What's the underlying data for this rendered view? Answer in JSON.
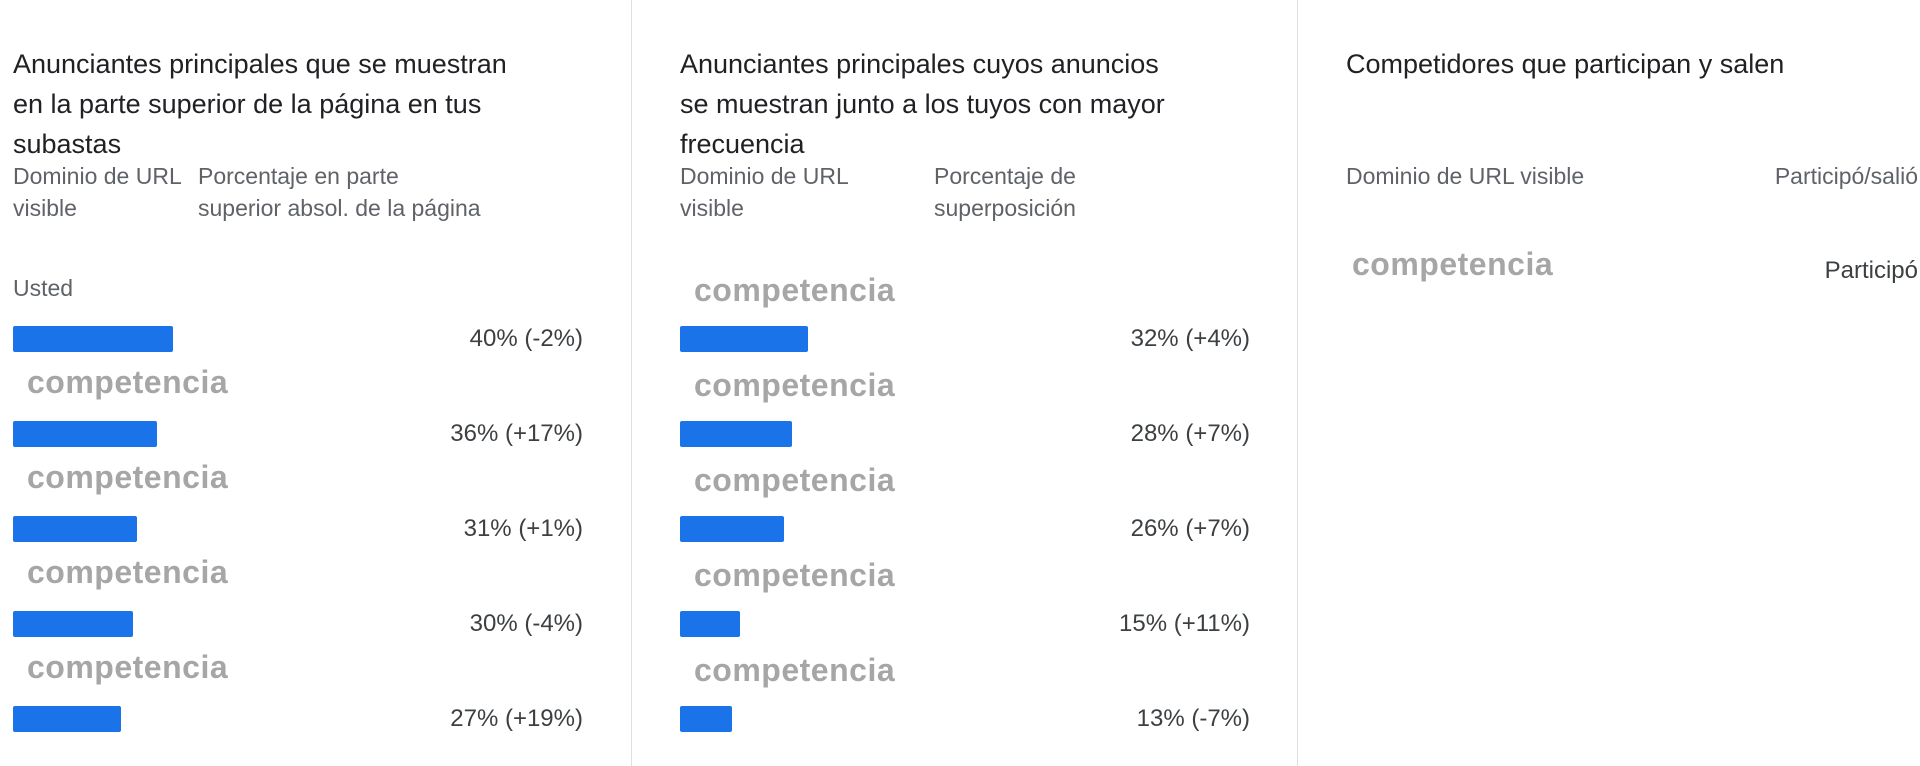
{
  "panel1": {
    "title_lines": [
      "Anunciantes principales que se muestran",
      "en la parte superior de la página en tus",
      "subastas"
    ],
    "col1": [
      "Dominio de URL",
      "visible"
    ],
    "col2": [
      "Porcentaje en parte",
      "superior absol. de la página"
    ],
    "you_label": "Usted",
    "rows": [
      {
        "name": "",
        "value_pct": 40,
        "label": "40% (-2%)"
      },
      {
        "name": "competencia",
        "value_pct": 36,
        "label": "36% (+17%)"
      },
      {
        "name": "competencia",
        "value_pct": 31,
        "label": "31% (+1%)"
      },
      {
        "name": "competencia",
        "value_pct": 30,
        "label": "30% (-4%)"
      },
      {
        "name": "competencia",
        "value_pct": 27,
        "label": "27% (+19%)"
      }
    ]
  },
  "panel2": {
    "title_lines": [
      "Anunciantes principales cuyos anuncios",
      "se muestran junto a los tuyos con mayor",
      "frecuencia"
    ],
    "col1": [
      "Dominio de URL",
      "visible"
    ],
    "col2": [
      "Porcentaje de",
      "superposición"
    ],
    "rows": [
      {
        "name": "competencia",
        "value_pct": 32,
        "label": "32% (+4%)"
      },
      {
        "name": "competencia",
        "value_pct": 28,
        "label": "28% (+7%)"
      },
      {
        "name": "competencia",
        "value_pct": 26,
        "label": "26% (+7%)"
      },
      {
        "name": "competencia",
        "value_pct": 15,
        "label": "15% (+11%)"
      },
      {
        "name": "competencia",
        "value_pct": 13,
        "label": "13% (-7%)"
      }
    ]
  },
  "panel3": {
    "title": "Competidores que participan y salen",
    "col1": "Dominio de URL visible",
    "col2": "Participó/salió",
    "row": {
      "name": "competencia",
      "status": "Participó"
    }
  },
  "colors": {
    "bar": "#1a73e8",
    "competitor_text": "#a6a6a6",
    "divider": "#e0e0e0"
  }
}
